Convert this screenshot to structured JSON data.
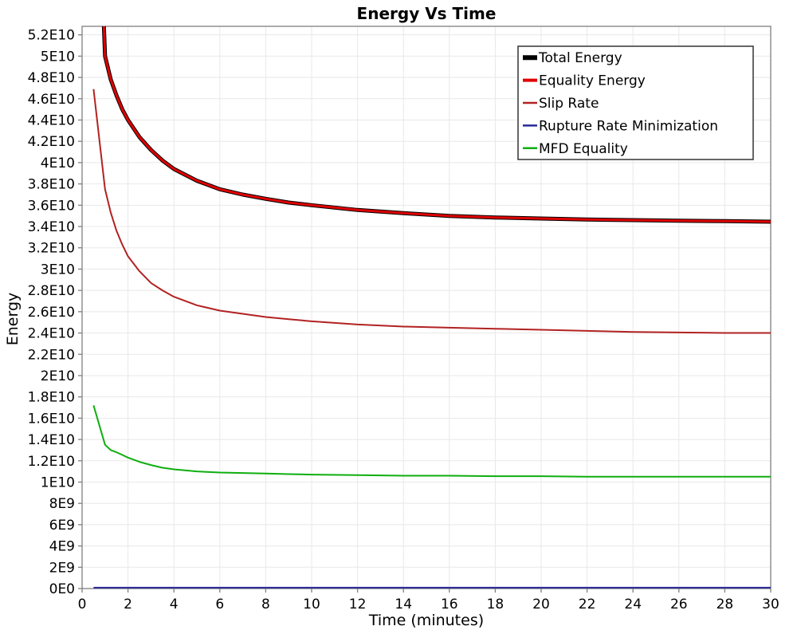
{
  "page": {
    "background": "#ffffff"
  },
  "chart_data": {
    "type": "line",
    "title": "Energy Vs Time",
    "xlabel": "Time (minutes)",
    "ylabel": "Energy",
    "xlim": [
      0,
      30
    ],
    "ylim": [
      0,
      52800000000.0
    ],
    "grid": true,
    "grid_color": "#e8e8e8",
    "frame_color": "#808080",
    "tick_color": "#808080",
    "x_ticks": [
      0,
      2,
      4,
      6,
      8,
      10,
      12,
      14,
      16,
      18,
      20,
      22,
      24,
      26,
      28,
      30
    ],
    "x_tick_labels": [
      "0",
      "2",
      "4",
      "6",
      "8",
      "10",
      "12",
      "14",
      "16",
      "18",
      "20",
      "22",
      "24",
      "26",
      "28",
      "30"
    ],
    "y_ticks": [
      0,
      2000000000.0,
      4000000000.0,
      6000000000.0,
      8000000000.0,
      10000000000.0,
      12000000000.0,
      14000000000.0,
      16000000000.0,
      18000000000.0,
      20000000000.0,
      22000000000.0,
      24000000000.0,
      26000000000.0,
      28000000000.0,
      30000000000.0,
      32000000000.0,
      34000000000.0,
      36000000000.0,
      38000000000.0,
      40000000000.0,
      42000000000.0,
      44000000000.0,
      46000000000.0,
      48000000000.0,
      50000000000.0,
      52000000000.0
    ],
    "y_tick_labels": [
      "0E0",
      "2E9",
      "4E9",
      "6E9",
      "8E9",
      "1E10",
      "1.2E10",
      "1.4E10",
      "1.6E10",
      "1.8E10",
      "2E10",
      "2.2E10",
      "2.4E10",
      "2.6E10",
      "2.8E10",
      "3E10",
      "3.2E10",
      "3.4E10",
      "3.6E10",
      "3.8E10",
      "4E10",
      "4.2E10",
      "4.4E10",
      "4.6E10",
      "4.8E10",
      "5E10",
      "5.2E10"
    ],
    "legend": {
      "position": "top-right",
      "border_color": "#333333",
      "background": "#ffffff"
    },
    "x": [
      0.5,
      1,
      1.25,
      1.5,
      1.75,
      2,
      2.5,
      3,
      3.5,
      4,
      5,
      6,
      7,
      8,
      9,
      10,
      12,
      14,
      16,
      18,
      20,
      22,
      24,
      26,
      28,
      30
    ],
    "series": [
      {
        "name": "Total Energy",
        "color": "#000000",
        "width": 5,
        "values": [
          78000000000.0,
          50000000000.0,
          47800000000.0,
          46300000000.0,
          45000000000.0,
          44000000000.0,
          42400000000.0,
          41200000000.0,
          40200000000.0,
          39400000000.0,
          38300000000.0,
          37500000000.0,
          37000000000.0,
          36600000000.0,
          36250000000.0,
          36000000000.0,
          35550000000.0,
          35250000000.0,
          35000000000.0,
          34850000000.0,
          34750000000.0,
          34650000000.0,
          34600000000.0,
          34550000000.0,
          34500000000.0,
          34450000000.0
        ]
      },
      {
        "name": "Equality Energy",
        "color": "#e00000",
        "width": 3,
        "values": [
          78000000000.0,
          50000000000.0,
          47800000000.0,
          46300000000.0,
          45000000000.0,
          44000000000.0,
          42400000000.0,
          41200000000.0,
          40200000000.0,
          39400000000.0,
          38300000000.0,
          37500000000.0,
          37000000000.0,
          36600000000.0,
          36250000000.0,
          36000000000.0,
          35550000000.0,
          35250000000.0,
          35000000000.0,
          34850000000.0,
          34750000000.0,
          34650000000.0,
          34600000000.0,
          34550000000.0,
          34500000000.0,
          34450000000.0
        ]
      },
      {
        "name": "Slip Rate",
        "color": "#b22222",
        "width": 2,
        "values": [
          46900000000.0,
          37500000000.0,
          35300000000.0,
          33600000000.0,
          32300000000.0,
          31200000000.0,
          29800000000.0,
          28700000000.0,
          28000000000.0,
          27400000000.0,
          26600000000.0,
          26100000000.0,
          25800000000.0,
          25500000000.0,
          25300000000.0,
          25100000000.0,
          24800000000.0,
          24600000000.0,
          24500000000.0,
          24400000000.0,
          24300000000.0,
          24200000000.0,
          24100000000.0,
          24050000000.0,
          24000000000.0,
          24000000000.0
        ]
      },
      {
        "name": "Rupture Rate Minimization",
        "color": "#28289a",
        "width": 2,
        "values": [
          80000000.0,
          80000000.0,
          80000000.0,
          80000000.0,
          80000000.0,
          80000000.0,
          80000000.0,
          80000000.0,
          80000000.0,
          80000000.0,
          80000000.0,
          80000000.0,
          80000000.0,
          80000000.0,
          80000000.0,
          80000000.0,
          80000000.0,
          80000000.0,
          80000000.0,
          80000000.0,
          80000000.0,
          80000000.0,
          80000000.0,
          80000000.0,
          80000000.0,
          80000000.0
        ]
      },
      {
        "name": "MFD Equality",
        "color": "#0fae0f",
        "width": 2,
        "values": [
          17200000000.0,
          13500000000.0,
          13000000000.0,
          12800000000.0,
          12550000000.0,
          12300000000.0,
          11900000000.0,
          11600000000.0,
          11350000000.0,
          11200000000.0,
          11000000000.0,
          10900000000.0,
          10850000000.0,
          10800000000.0,
          10750000000.0,
          10700000000.0,
          10650000000.0,
          10600000000.0,
          10600000000.0,
          10550000000.0,
          10550000000.0,
          10500000000.0,
          10500000000.0,
          10500000000.0,
          10500000000.0,
          10500000000.0
        ]
      }
    ]
  }
}
